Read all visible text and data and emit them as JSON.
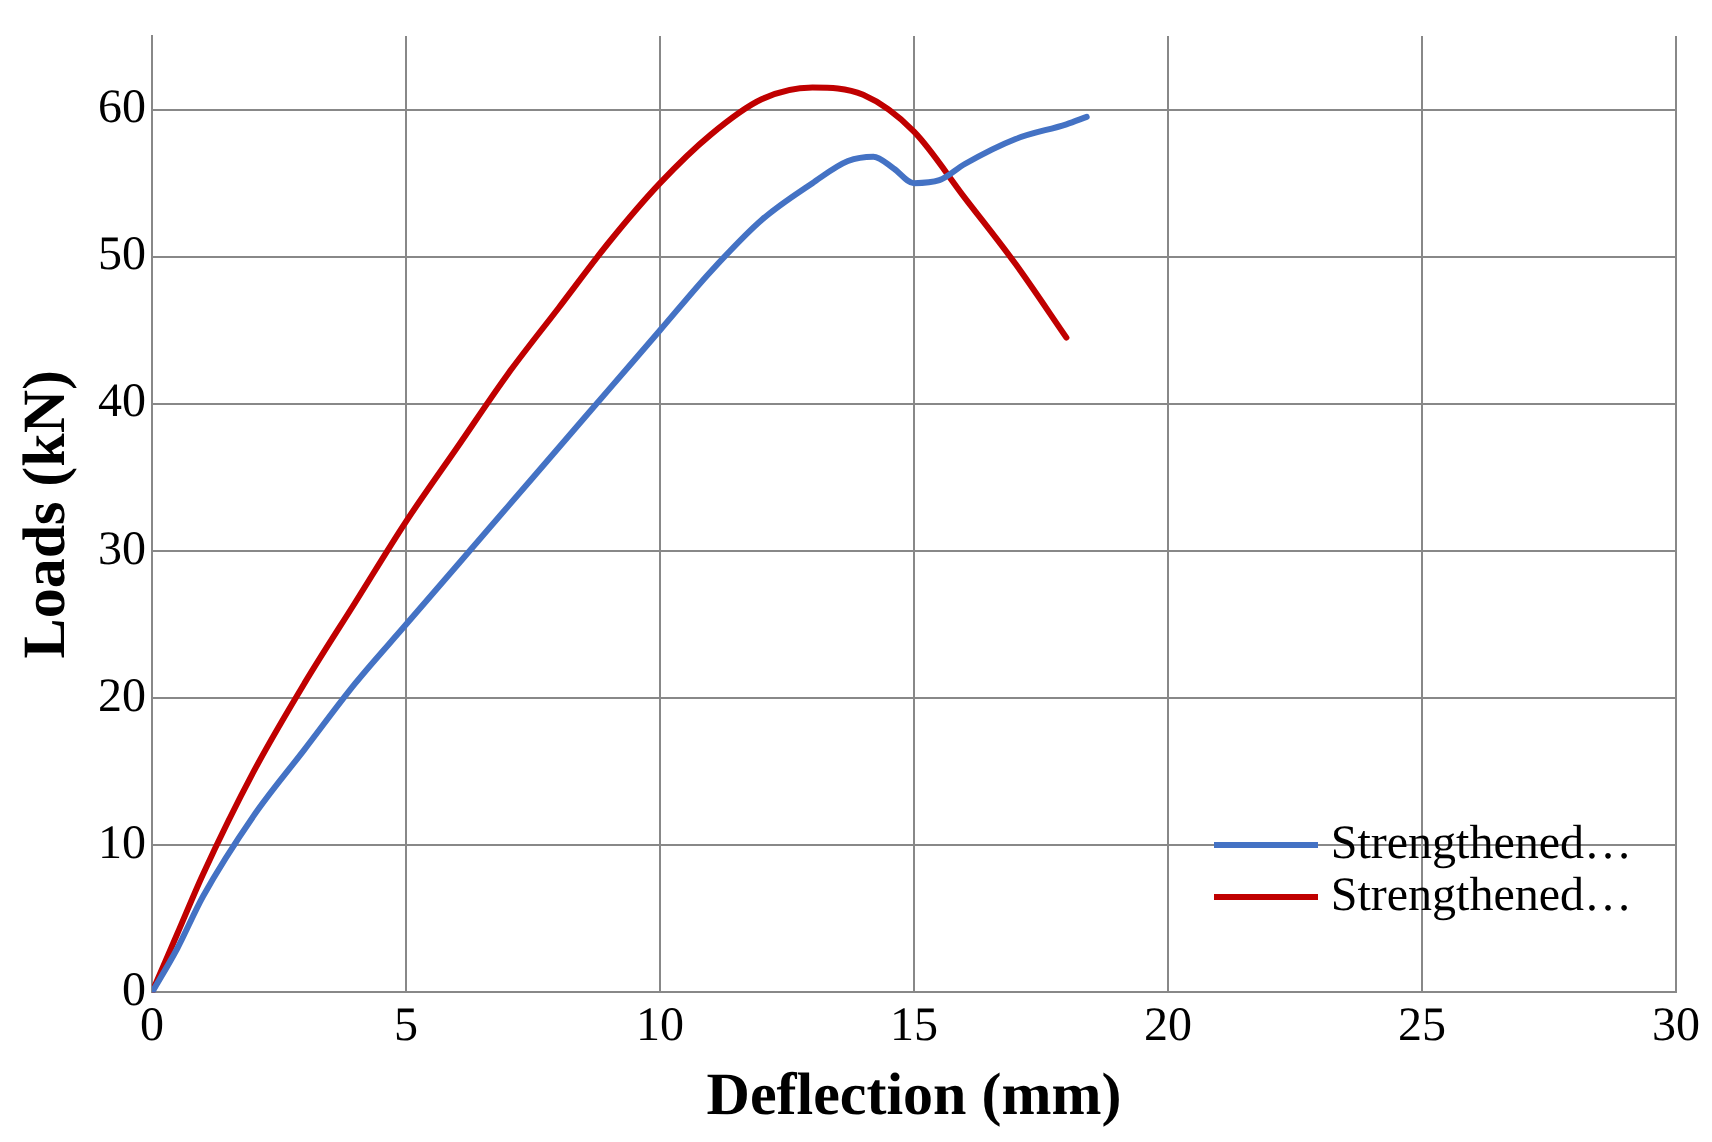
{
  "chart_data": {
    "type": "line",
    "xlabel": "Deflection (mm)",
    "ylabel": "Loads (kN)",
    "xlim": [
      0,
      30
    ],
    "xticks": [
      0,
      5,
      10,
      15,
      20,
      25,
      30
    ],
    "ylim": [
      0,
      65
    ],
    "yticks": [
      0,
      10,
      20,
      30,
      40,
      50,
      60
    ],
    "grid": true,
    "legend": "bottom right",
    "marker": "none",
    "line_style": "solid",
    "series": [
      {
        "name": "Strengthened…",
        "color": "#4472c4",
        "x": [
          0,
          0.5,
          1,
          2,
          3,
          4,
          5,
          6,
          7,
          8,
          9,
          10,
          11,
          12,
          13,
          13.7,
          14.2,
          14.6,
          15,
          15.5,
          16,
          17,
          18,
          18.4
        ],
        "values": [
          0,
          3,
          6.5,
          12,
          16.5,
          21,
          25,
          29,
          33,
          37,
          41,
          45,
          49,
          52.5,
          55,
          56.5,
          56.8,
          56,
          55,
          55.2,
          56.3,
          58,
          59,
          59.5
        ]
      },
      {
        "name": "Strengthened…",
        "color": "#c00000",
        "x": [
          0,
          0.5,
          1,
          2,
          3,
          4,
          5,
          6,
          7,
          8,
          9,
          10,
          11,
          12,
          13,
          14,
          15,
          16,
          17,
          18
        ],
        "values": [
          0,
          4,
          8,
          15,
          21,
          26.5,
          32,
          37,
          42,
          46.5,
          51,
          55,
          58.3,
          60.7,
          61.5,
          61,
          58.5,
          54,
          49.5,
          44.5
        ]
      }
    ]
  }
}
